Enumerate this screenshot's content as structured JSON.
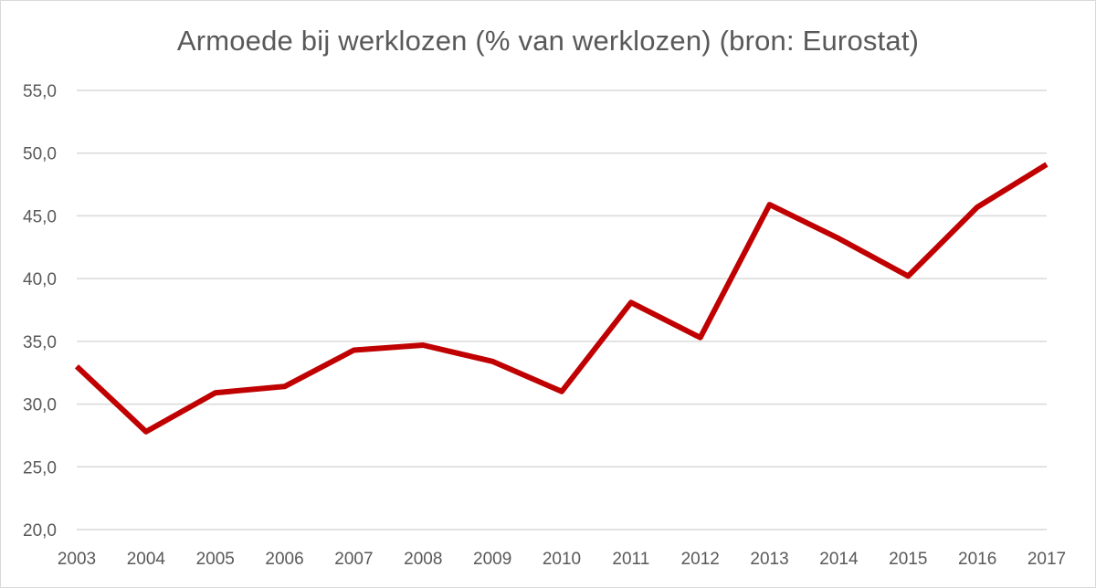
{
  "chart_data": {
    "type": "line",
    "title": "Armoede bij werklozen (% van werklozen) (bron: Eurostat)",
    "xlabel": "",
    "ylabel": "",
    "categories": [
      "2003",
      "2004",
      "2005",
      "2006",
      "2007",
      "2008",
      "2009",
      "2010",
      "2011",
      "2012",
      "2013",
      "2014",
      "2015",
      "2016",
      "2017"
    ],
    "series": [
      {
        "values": [
          33.0,
          27.8,
          30.9,
          31.4,
          34.3,
          34.7,
          33.4,
          31.0,
          38.1,
          35.3,
          45.9,
          43.2,
          40.2,
          45.7,
          49.1
        ]
      }
    ],
    "ylim": [
      20,
      55
    ],
    "yticks": [
      "20,0",
      "25,0",
      "30,0",
      "35,0",
      "40,0",
      "45,0",
      "50,0",
      "55,0"
    ],
    "grid": true,
    "legend": "none",
    "colors": {
      "line": "#c00000",
      "grid": "#d9d9d9",
      "text": "#595959"
    }
  }
}
